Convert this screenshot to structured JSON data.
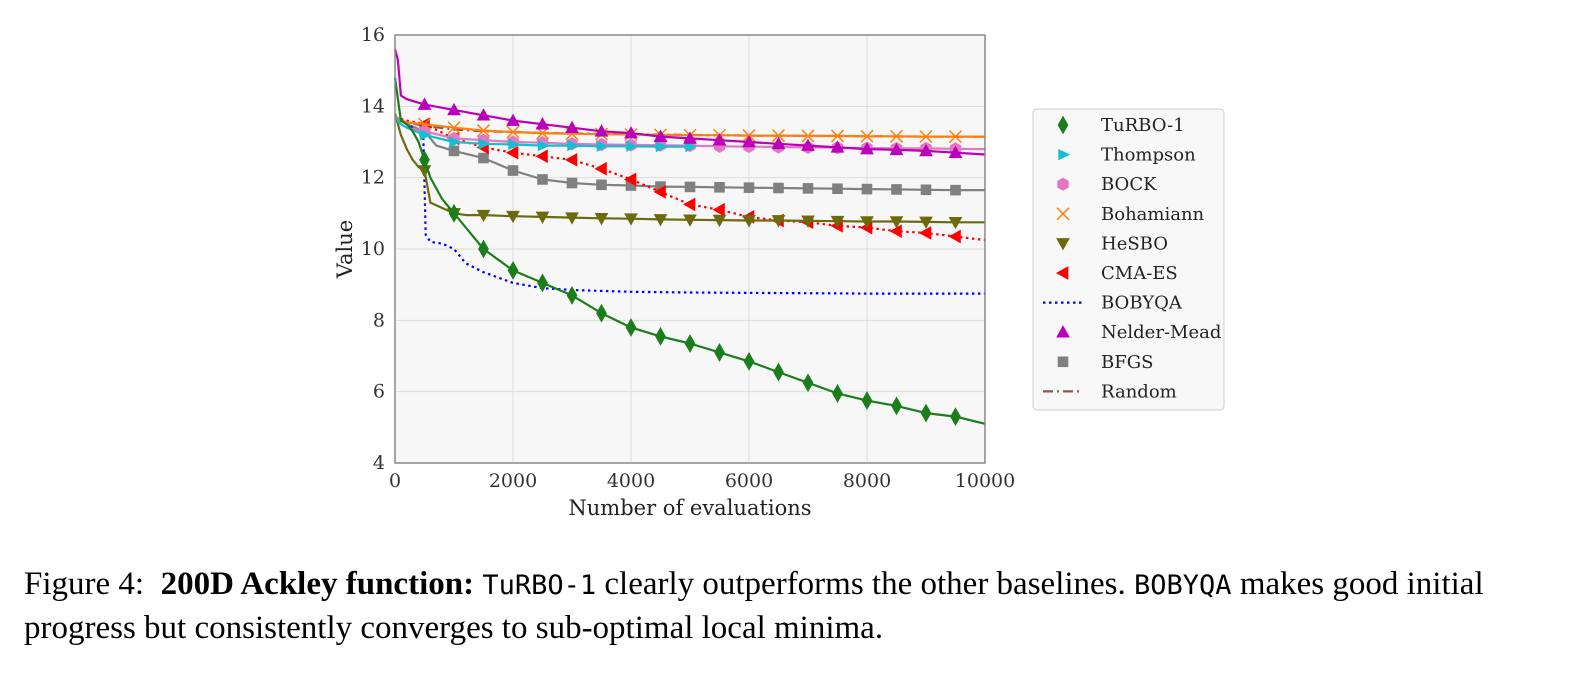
{
  "chart_data": {
    "type": "line",
    "title": "",
    "xlabel": "Number of evaluations",
    "ylabel": "Value",
    "xlim": [
      0,
      10000
    ],
    "ylim": [
      4,
      16
    ],
    "xticks": [
      0,
      2000,
      4000,
      6000,
      8000,
      10000
    ],
    "yticks": [
      4,
      6,
      8,
      10,
      12,
      14,
      16
    ],
    "grid": true,
    "legend_position": "right-outside",
    "series": [
      {
        "name": "TuRBO-1",
        "color": "#1a7f1a",
        "dash": "solid",
        "marker": "diamond",
        "x": [
          0,
          100,
          200,
          300,
          400,
          500,
          600,
          700,
          800,
          1000,
          1200,
          1500,
          2000,
          2500,
          3000,
          3500,
          4000,
          4500,
          5000,
          5500,
          6000,
          6500,
          7000,
          7500,
          8000,
          8500,
          9000,
          9500,
          10000
        ],
        "y": [
          14.8,
          13.6,
          13.5,
          13.3,
          13.0,
          12.5,
          12.0,
          11.7,
          11.4,
          11.0,
          10.6,
          10.0,
          9.4,
          9.05,
          8.7,
          8.2,
          7.8,
          7.55,
          7.35,
          7.1,
          6.85,
          6.55,
          6.25,
          5.95,
          5.75,
          5.6,
          5.4,
          5.3,
          5.1
        ]
      },
      {
        "name": "Thompson",
        "color": "#17becf",
        "dash": "solid",
        "marker": "triangle-right",
        "x": [
          0,
          100,
          200,
          500,
          1000,
          1500,
          2000,
          2500,
          3000,
          3500,
          4000,
          4500,
          5000
        ],
        "y": [
          13.7,
          13.5,
          13.4,
          13.2,
          13.0,
          12.95,
          12.93,
          12.9,
          12.9,
          12.88,
          12.88,
          12.87,
          12.87
        ]
      },
      {
        "name": "BOCK",
        "color": "#e377c2",
        "dash": "solid",
        "marker": "hexagon",
        "x": [
          0,
          100,
          200,
          500,
          1000,
          1500,
          2000,
          2500,
          3000,
          3500,
          4000,
          4500,
          5000,
          5500,
          6000,
          6500,
          7000,
          7500,
          8000,
          8500,
          9000,
          9500,
          10000
        ],
        "y": [
          13.7,
          13.5,
          13.4,
          13.3,
          13.1,
          13.05,
          13.0,
          12.98,
          12.95,
          12.93,
          12.92,
          12.91,
          12.9,
          12.88,
          12.87,
          12.86,
          12.85,
          12.84,
          12.83,
          12.82,
          12.82,
          12.81,
          12.8
        ]
      },
      {
        "name": "Bohamiann",
        "color": "#ff7f0e",
        "dash": "solid",
        "marker": "x",
        "x": [
          0,
          100,
          200,
          500,
          1000,
          1500,
          2000,
          2500,
          3000,
          3500,
          4000,
          4500,
          5000,
          5500,
          6000,
          6500,
          7000,
          7500,
          8000,
          8500,
          9000,
          9500,
          10000
        ],
        "y": [
          13.7,
          13.6,
          13.55,
          13.5,
          13.4,
          13.32,
          13.28,
          13.25,
          13.23,
          13.22,
          13.21,
          13.2,
          13.19,
          13.19,
          13.18,
          13.18,
          13.17,
          13.17,
          13.16,
          13.16,
          13.15,
          13.15,
          13.15
        ]
      },
      {
        "name": "HeSBO",
        "color": "#6b6b0d",
        "dash": "solid",
        "marker": "triangle-down",
        "x": [
          0,
          100,
          200,
          300,
          400,
          500,
          600,
          800,
          1000,
          1200,
          1500,
          2000,
          2500,
          3000,
          3500,
          4000,
          4500,
          5000,
          5500,
          6000,
          6500,
          7000,
          7500,
          8000,
          8500,
          9000,
          9500,
          10000
        ],
        "y": [
          13.8,
          13.2,
          12.8,
          12.5,
          12.3,
          12.2,
          11.3,
          11.15,
          11.0,
          10.95,
          10.95,
          10.92,
          10.9,
          10.88,
          10.86,
          10.85,
          10.83,
          10.82,
          10.81,
          10.8,
          10.8,
          10.79,
          10.78,
          10.77,
          10.77,
          10.76,
          10.75,
          10.75
        ]
      },
      {
        "name": "CMA-ES",
        "color": "#ff0000",
        "dash": "dotted",
        "marker": "triangle-left",
        "x": [
          0,
          200,
          500,
          1000,
          1500,
          2000,
          2500,
          3000,
          3500,
          4000,
          4500,
          5000,
          5500,
          6000,
          6500,
          7000,
          7500,
          8000,
          8500,
          9000,
          9500,
          10000
        ],
        "y": [
          13.7,
          13.6,
          13.5,
          13.1,
          12.85,
          12.7,
          12.6,
          12.5,
          12.25,
          11.95,
          11.6,
          11.25,
          11.1,
          10.9,
          10.8,
          10.75,
          10.65,
          10.6,
          10.5,
          10.45,
          10.35,
          10.25
        ]
      },
      {
        "name": "BOBYQA",
        "color": "#0000ff",
        "dash": "dotted",
        "marker": "none",
        "x": [
          0,
          300,
          480,
          520,
          600,
          800,
          1000,
          1200,
          1500,
          2000,
          2500,
          3000,
          4000,
          5000,
          6000,
          7000,
          8000,
          9000,
          10000
        ],
        "y": [
          13.7,
          13.4,
          13.2,
          10.4,
          10.2,
          10.15,
          10.0,
          9.6,
          9.35,
          9.05,
          8.9,
          8.85,
          8.8,
          8.78,
          8.77,
          8.76,
          8.75,
          8.75,
          8.75
        ]
      },
      {
        "name": "Nelder-Mead",
        "color": "#bb00bb",
        "dash": "solid",
        "marker": "triangle-up",
        "x": [
          0,
          50,
          100,
          200,
          500,
          1000,
          1500,
          2000,
          2500,
          3000,
          3500,
          4000,
          4500,
          5000,
          5500,
          6000,
          6500,
          7000,
          7500,
          8000,
          8500,
          9000,
          9500,
          10000
        ],
        "y": [
          15.6,
          15.3,
          14.3,
          14.2,
          14.05,
          13.9,
          13.75,
          13.6,
          13.5,
          13.4,
          13.3,
          13.25,
          13.15,
          13.1,
          13.05,
          13.0,
          12.95,
          12.9,
          12.85,
          12.8,
          12.78,
          12.75,
          12.7,
          12.65
        ]
      },
      {
        "name": "BFGS",
        "color": "#808080",
        "dash": "solid",
        "marker": "square",
        "x": [
          0,
          200,
          500,
          700,
          1000,
          1500,
          2000,
          2500,
          3000,
          3500,
          4000,
          4500,
          5000,
          5500,
          6000,
          6500,
          7000,
          7500,
          8000,
          8500,
          9000,
          9500,
          10000
        ],
        "y": [
          13.7,
          13.5,
          13.3,
          12.9,
          12.75,
          12.55,
          12.2,
          11.95,
          11.85,
          11.8,
          11.78,
          11.75,
          11.74,
          11.73,
          11.72,
          11.71,
          11.7,
          11.69,
          11.68,
          11.67,
          11.66,
          11.65,
          11.65
        ]
      },
      {
        "name": "Random",
        "color": "#8c564b",
        "dash": "dashdot",
        "marker": "none",
        "x": [
          0,
          200,
          500,
          1000,
          1500,
          2000,
          2500,
          3000,
          4000,
          5000,
          6000,
          7000,
          8000,
          9000,
          10000
        ],
        "y": [
          13.7,
          13.55,
          13.45,
          13.35,
          13.3,
          13.28,
          13.25,
          13.24,
          13.22,
          13.2,
          13.18,
          13.17,
          13.16,
          13.15,
          13.15
        ]
      }
    ]
  },
  "caption": {
    "figure_label": "Figure 4:",
    "bold_title": "200D Ackley function:",
    "method1": "TuRBO-1",
    "text1": "clearly outperforms the other baselines.",
    "method2": "BOBYQA",
    "text2": "makes good initial progress but consistently converges to sub-optimal local minima."
  }
}
